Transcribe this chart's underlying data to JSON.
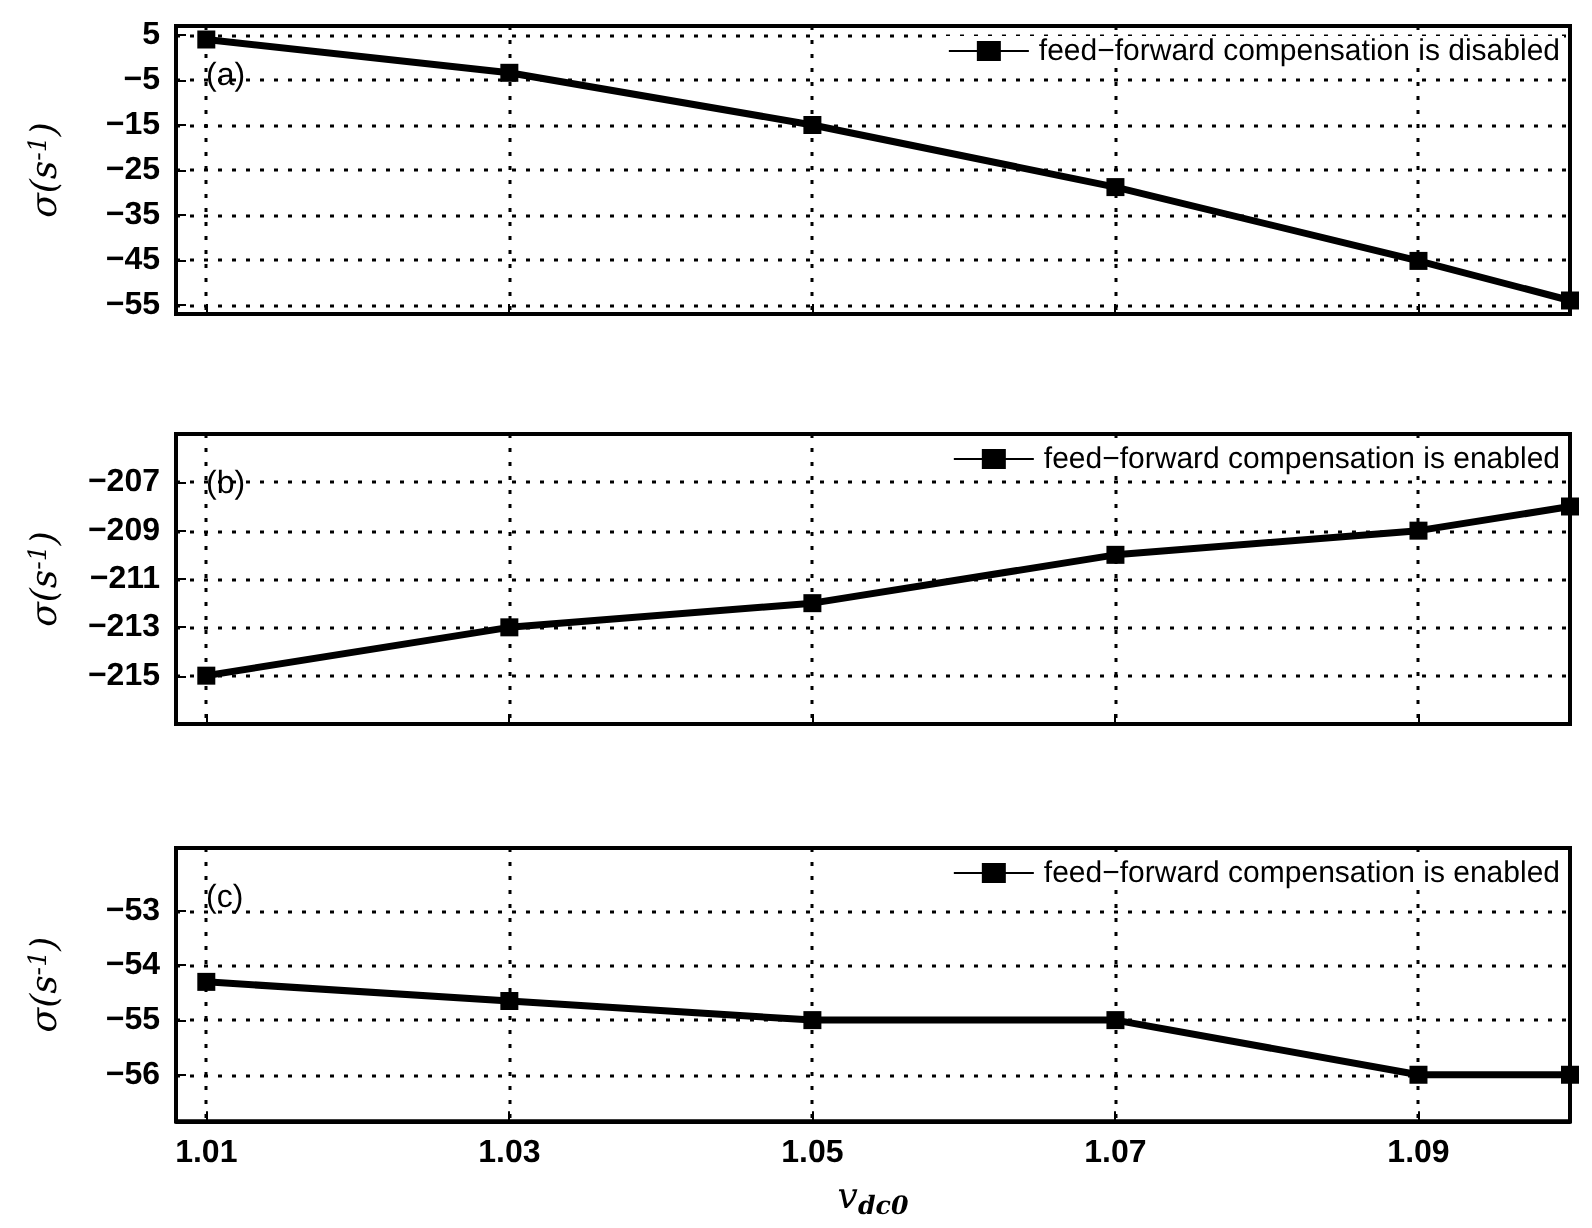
{
  "chart_data": [
    {
      "type": "line",
      "x": [
        1.01,
        1.03,
        1.05,
        1.07,
        1.09,
        1.1
      ],
      "series": [
        {
          "name": "feed−forward compensation is disabled",
          "color": "#000000",
          "values": [
            4,
            -3.4,
            -15,
            -28.8,
            -45.2,
            -54
          ]
        }
      ],
      "xlim": [
        1.008,
        1.1
      ],
      "xticks": [
        1.01,
        1.03,
        1.05,
        1.07,
        1.09
      ],
      "ylim": [
        -57,
        7
      ],
      "yticks": [
        5,
        -5,
        -15,
        -25,
        -35,
        -45,
        -55
      ],
      "ylabel": "σ(s$^{-1}$)",
      "annotations": [
        "(a)"
      ],
      "legend": "top right",
      "grid": true,
      "marker": "square",
      "line_style": "solid",
      "tick_labels": "y"
    },
    {
      "type": "line",
      "x": [
        1.01,
        1.03,
        1.05,
        1.07,
        1.09,
        1.1
      ],
      "series": [
        {
          "name": "feed−forward compensation is enabled",
          "color": "#000000",
          "values": [
            -215,
            -213,
            -212,
            -210,
            -209,
            -208
          ]
        }
      ],
      "xlim": [
        1.008,
        1.1
      ],
      "xticks": [
        1.01,
        1.03,
        1.05,
        1.07,
        1.09
      ],
      "ylim": [
        -217,
        -205
      ],
      "yticks": [
        -207,
        -209,
        -211,
        -213,
        -215
      ],
      "ylabel": "σ(s$^{-1}$)",
      "annotations": [
        "(b)"
      ],
      "legend": "top right",
      "grid": true,
      "marker": "square",
      "line_style": "solid",
      "tick_labels": "y"
    },
    {
      "type": "line",
      "x": [
        1.01,
        1.03,
        1.05,
        1.07,
        1.09,
        1.1
      ],
      "series": [
        {
          "name": "feed−forward compensation is enabled",
          "color": "#000000",
          "values": [
            -54.3,
            -54.65,
            -55,
            -55,
            -56,
            -56
          ]
        }
      ],
      "xlim": [
        1.008,
        1.1
      ],
      "xticks": [
        1.01,
        1.03,
        1.05,
        1.07,
        1.09
      ],
      "ylim": [
        -56.85,
        -51.85
      ],
      "yticks": [
        -53,
        -54,
        -55,
        -56
      ],
      "ylabel": "σ(s$^{-1}$)",
      "xlabel": "v$_{dc0}$",
      "annotations": [
        "(c)"
      ],
      "legend": "top right",
      "grid": true,
      "marker": "square",
      "line_style": "solid"
    }
  ]
}
